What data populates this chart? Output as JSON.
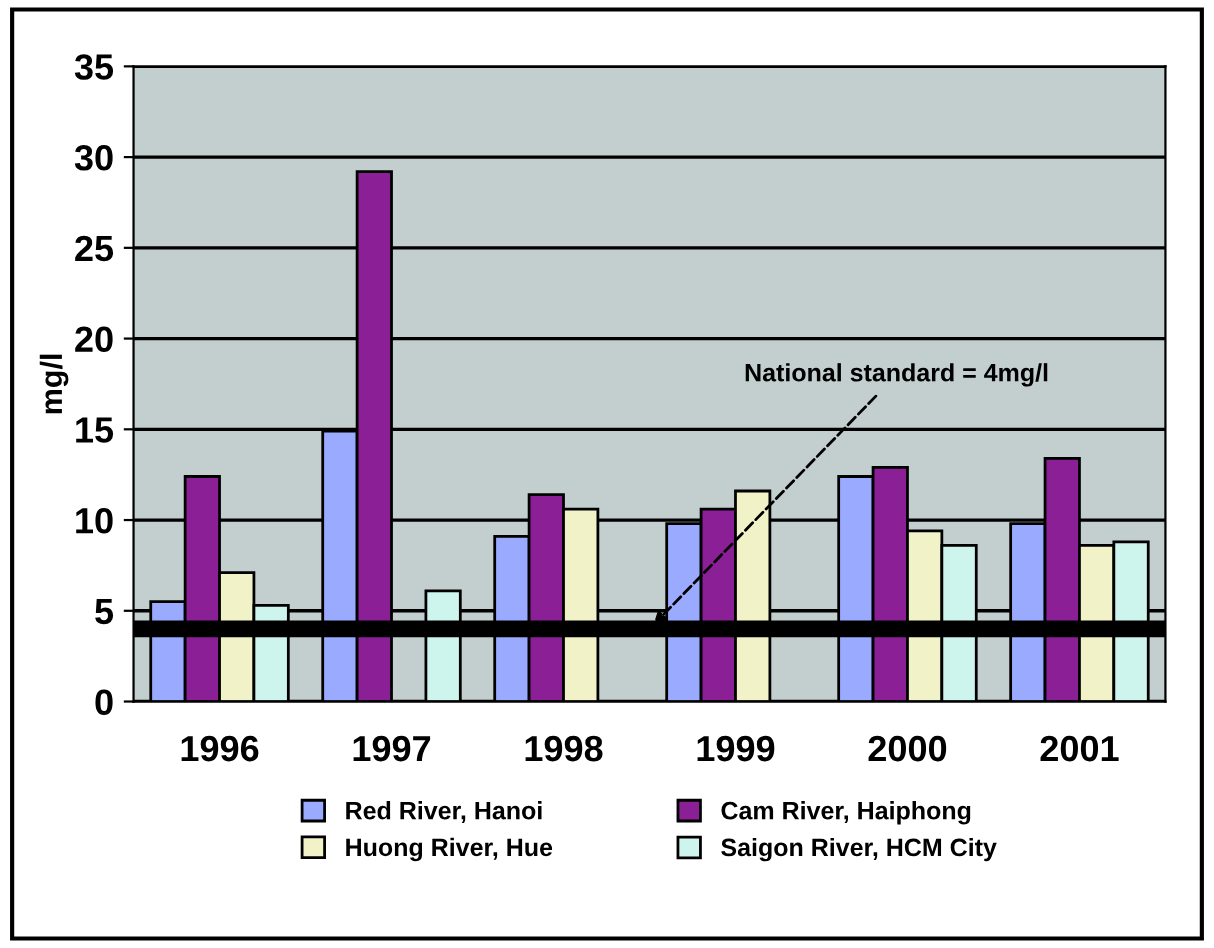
{
  "chart_data": {
    "type": "bar",
    "categories": [
      "1996",
      "1997",
      "1998",
      "1999",
      "2000",
      "2001"
    ],
    "ylabel": "mg/l",
    "series": [
      {
        "name": "Red River, Hanoi",
        "color": "#99aaff",
        "values": [
          5.5,
          14.9,
          9.1,
          9.8,
          12.4,
          9.8
        ]
      },
      {
        "name": "Cam River, Haiphong",
        "color": "#8b1f96",
        "values": [
          12.4,
          29.2,
          11.4,
          10.6,
          12.9,
          13.4
        ]
      },
      {
        "name": "Huong River, Hue",
        "color": "#f2f2c8",
        "values": [
          7.1,
          null,
          10.6,
          11.6,
          9.4,
          8.6
        ]
      },
      {
        "name": "Saigon River, HCM City",
        "color": "#cdf5ee",
        "values": [
          5.3,
          6.1,
          null,
          null,
          8.6,
          8.8
        ]
      }
    ],
    "ylim": [
      0,
      35
    ],
    "yticks": [
      0,
      5,
      10,
      15,
      20,
      25,
      30,
      35
    ],
    "ref_lines": [
      {
        "axis": "y",
        "value": 4,
        "label": "National standard = 4mg/l",
        "color": "#000000"
      }
    ],
    "grid": "y",
    "legend": "bottom"
  }
}
